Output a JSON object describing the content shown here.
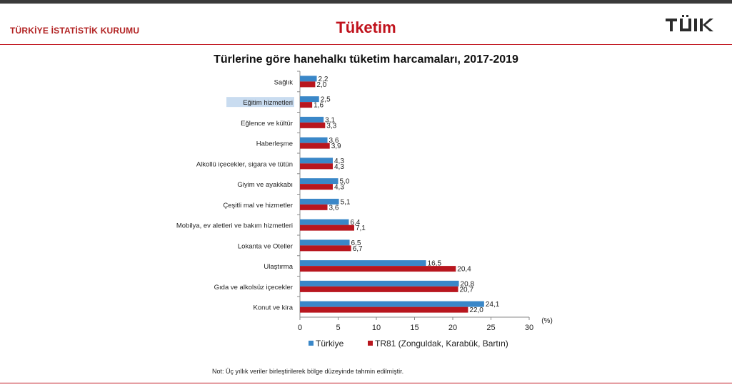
{
  "header": {
    "org_name": "TÜRKİYE İSTATİSTİK KURUMU",
    "page_title": "Tüketim",
    "logo_text": "TÜİK"
  },
  "chart_data": {
    "type": "bar",
    "orientation": "horizontal",
    "title": "Türlerine göre hanehalkı tüketim harcamaları, 2017-2019",
    "xlabel": "(%)",
    "ylabel": "",
    "xlim": [
      0,
      30
    ],
    "xticks": [
      0,
      5,
      10,
      15,
      20,
      25,
      30
    ],
    "categories": [
      "Sağlık",
      "Eğitim hizmetleri",
      "Eğlence ve kültür",
      "Haberleşme",
      "Alkollü içecekler, sigara ve tütün",
      "Giyim ve ayakkabı",
      "Çeşitli mal ve hizmetler",
      "Mobilya, ev aletleri ve bakım hizmetleri",
      "Lokanta ve Oteller",
      "Ulaştırma",
      "Gıda ve alkolsüz içecekler",
      "Konut ve kira"
    ],
    "series": [
      {
        "name": "Türkiye",
        "color": "#3a87c8",
        "values": [
          2.2,
          2.5,
          3.1,
          3.6,
          4.3,
          5.0,
          5.1,
          6.4,
          6.5,
          16.5,
          20.8,
          24.1
        ],
        "labels": [
          "2,2",
          "2,5",
          "3,1",
          "3,6",
          "4,3",
          "5,0",
          "5,1",
          "6,4",
          "6,5",
          "16,5",
          "20,8",
          "24,1"
        ]
      },
      {
        "name": "TR81 (Zonguldak, Karabük, Bartın)",
        "color": "#b8161e",
        "values": [
          2.0,
          1.6,
          3.3,
          3.9,
          4.3,
          4.3,
          3.6,
          7.1,
          6.7,
          20.4,
          20.7,
          22.0
        ],
        "labels": [
          "2,0",
          "1,6",
          "3,3",
          "3,9",
          "4,3",
          "4,3",
          "3,6",
          "7,1",
          "6,7",
          "20,4",
          "20,7",
          "22,0"
        ]
      }
    ],
    "legend_position": "bottom",
    "grid": false
  },
  "note": "Not: Üç yıllık veriler birleştirilerek bölge düzeyinde tahmin edilmiştir."
}
